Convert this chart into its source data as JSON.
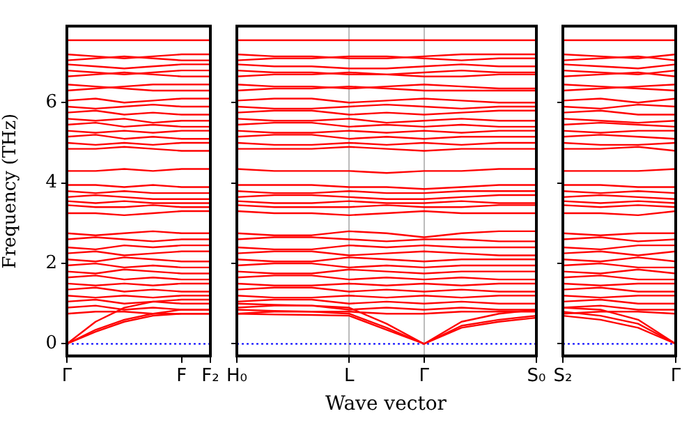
{
  "chart_data": [
    {
      "type": "line",
      "ylabel": "Frequency (THz)",
      "color": "#ff0000",
      "categories": [
        "Γ",
        null,
        null,
        null,
        "F",
        "F₂"
      ],
      "ylim": [
        -0.3,
        7.9
      ],
      "yticks": [
        0,
        2,
        4,
        6
      ],
      "ref_lines": [
        {
          "axis": "y",
          "value": 0,
          "color": "#0000ff",
          "line_style": "dotted"
        }
      ],
      "series": [
        {
          "values": [
            7.55,
            7.55,
            7.55,
            7.55,
            7.55,
            7.55
          ]
        },
        {
          "values": [
            7.2,
            7.15,
            7.1,
            7.15,
            7.2,
            7.2
          ]
        },
        {
          "values": [
            7.05,
            7.1,
            7.15,
            7.1,
            7.05,
            7.05
          ]
        },
        {
          "values": [
            6.95,
            6.9,
            6.85,
            6.9,
            6.95,
            6.95
          ]
        },
        {
          "values": [
            6.8,
            6.75,
            6.7,
            6.75,
            6.8,
            6.8
          ]
        },
        {
          "values": [
            6.65,
            6.7,
            6.75,
            6.7,
            6.65,
            6.65
          ]
        },
        {
          "values": [
            6.45,
            6.4,
            6.35,
            6.3,
            6.3,
            6.3
          ]
        },
        {
          "values": [
            6.3,
            6.35,
            6.4,
            6.45,
            6.45,
            6.45
          ]
        },
        {
          "values": [
            6.05,
            6.1,
            6.0,
            6.05,
            6.1,
            6.1
          ]
        },
        {
          "values": [
            5.9,
            5.85,
            5.9,
            5.95,
            5.9,
            5.9
          ]
        },
        {
          "values": [
            5.75,
            5.8,
            5.7,
            5.75,
            5.7,
            5.7
          ]
        },
        {
          "values": [
            5.6,
            5.55,
            5.6,
            5.5,
            5.55,
            5.55
          ]
        },
        {
          "values": [
            5.45,
            5.5,
            5.4,
            5.45,
            5.4,
            5.4
          ]
        },
        {
          "values": [
            5.3,
            5.25,
            5.3,
            5.25,
            5.3,
            5.3
          ]
        },
        {
          "values": [
            5.15,
            5.2,
            5.1,
            5.15,
            5.1,
            5.1
          ]
        },
        {
          "values": [
            5.0,
            4.95,
            5.0,
            4.95,
            5.0,
            5.0
          ]
        },
        {
          "values": [
            4.85,
            4.85,
            4.9,
            4.85,
            4.8,
            4.8
          ]
        },
        {
          "values": [
            4.3,
            4.3,
            4.35,
            4.3,
            4.35,
            4.35
          ]
        },
        {
          "values": [
            3.95,
            3.95,
            3.9,
            3.95,
            3.9,
            3.9
          ]
        },
        {
          "values": [
            3.8,
            3.75,
            3.8,
            3.75,
            3.75,
            3.75
          ]
        },
        {
          "values": [
            3.65,
            3.7,
            3.65,
            3.6,
            3.6,
            3.6
          ]
        },
        {
          "values": [
            3.55,
            3.5,
            3.55,
            3.5,
            3.5,
            3.5
          ]
        },
        {
          "values": [
            3.45,
            3.4,
            3.4,
            3.45,
            3.4,
            3.4
          ]
        },
        {
          "values": [
            3.25,
            3.25,
            3.2,
            3.25,
            3.3,
            3.3
          ]
        },
        {
          "values": [
            2.75,
            2.7,
            2.75,
            2.8,
            2.75,
            2.75
          ]
        },
        {
          "values": [
            2.6,
            2.65,
            2.6,
            2.55,
            2.6,
            2.6
          ]
        },
        {
          "values": [
            2.4,
            2.35,
            2.45,
            2.4,
            2.45,
            2.45
          ]
        },
        {
          "values": [
            2.25,
            2.3,
            2.2,
            2.25,
            2.3,
            2.3
          ]
        },
        {
          "values": [
            2.1,
            2.05,
            2.15,
            2.1,
            2.05,
            2.05
          ]
        },
        {
          "values": [
            1.95,
            2.0,
            1.9,
            1.95,
            1.9,
            1.9
          ]
        },
        {
          "values": [
            1.8,
            1.75,
            1.85,
            1.8,
            1.75,
            1.75
          ]
        },
        {
          "values": [
            1.65,
            1.7,
            1.6,
            1.65,
            1.6,
            1.6
          ]
        },
        {
          "values": [
            1.5,
            1.45,
            1.5,
            1.45,
            1.5,
            1.5
          ]
        },
        {
          "values": [
            1.35,
            1.4,
            1.3,
            1.35,
            1.3,
            1.3
          ]
        },
        {
          "values": [
            1.2,
            1.15,
            1.2,
            1.15,
            1.2,
            1.2
          ]
        },
        {
          "values": [
            1.05,
            1.1,
            1.0,
            1.05,
            1.0,
            1.0
          ]
        },
        {
          "values": [
            0.9,
            0.95,
            0.85,
            0.9,
            0.85,
            0.85
          ]
        },
        {
          "values": [
            0.75,
            0.8,
            0.8,
            0.75,
            0.75,
            0.75
          ]
        },
        {
          "values": [
            0,
            0.3,
            0.55,
            0.7,
            0.75,
            0.75
          ]
        },
        {
          "values": [
            0,
            0.35,
            0.6,
            0.75,
            0.85,
            0.85
          ]
        },
        {
          "values": [
            0,
            0.55,
            0.9,
            1.05,
            1.1,
            1.1
          ]
        }
      ]
    },
    {
      "type": "line",
      "xlabel": "Wave vector",
      "color": "#ff0000",
      "grid": "x",
      "tick_labels": "x",
      "categories": [
        "H₀",
        null,
        null,
        "L",
        null,
        "Γ",
        null,
        null,
        "S₀"
      ],
      "ylim": [
        -0.3,
        7.9
      ],
      "yticks": [
        0,
        2,
        4,
        6
      ],
      "ref_lines": [
        {
          "axis": "y",
          "value": 0,
          "color": "#0000ff",
          "line_style": "dotted"
        }
      ],
      "series": [
        {
          "values": [
            7.55,
            7.55,
            7.55,
            7.55,
            7.55,
            7.55,
            7.55,
            7.55,
            7.55
          ]
        },
        {
          "values": [
            7.2,
            7.15,
            7.15,
            7.1,
            7.1,
            7.15,
            7.2,
            7.2,
            7.2
          ]
        },
        {
          "values": [
            7.05,
            7.1,
            7.1,
            7.15,
            7.15,
            7.1,
            7.05,
            7.1,
            7.1
          ]
        },
        {
          "values": [
            6.95,
            6.9,
            6.9,
            6.85,
            6.85,
            6.9,
            6.95,
            6.9,
            6.9
          ]
        },
        {
          "values": [
            6.8,
            6.75,
            6.75,
            6.7,
            6.7,
            6.75,
            6.8,
            6.75,
            6.75
          ]
        },
        {
          "values": [
            6.65,
            6.7,
            6.7,
            6.75,
            6.7,
            6.65,
            6.65,
            6.7,
            6.7
          ]
        },
        {
          "values": [
            6.45,
            6.4,
            6.4,
            6.35,
            6.4,
            6.45,
            6.4,
            6.35,
            6.35
          ]
        },
        {
          "values": [
            6.3,
            6.35,
            6.35,
            6.4,
            6.35,
            6.3,
            6.3,
            6.3,
            6.3
          ]
        },
        {
          "values": [
            6.05,
            6.1,
            6.1,
            6.0,
            6.05,
            6.1,
            6.05,
            6.0,
            6.0
          ]
        },
        {
          "values": [
            5.9,
            5.85,
            5.85,
            5.9,
            5.95,
            5.9,
            5.85,
            5.9,
            5.9
          ]
        },
        {
          "values": [
            5.75,
            5.8,
            5.8,
            5.7,
            5.75,
            5.7,
            5.75,
            5.8,
            5.8
          ]
        },
        {
          "values": [
            5.6,
            5.55,
            5.55,
            5.6,
            5.5,
            5.55,
            5.6,
            5.55,
            5.55
          ]
        },
        {
          "values": [
            5.45,
            5.5,
            5.5,
            5.4,
            5.45,
            5.4,
            5.45,
            5.4,
            5.4
          ]
        },
        {
          "values": [
            5.3,
            5.25,
            5.25,
            5.3,
            5.25,
            5.3,
            5.25,
            5.3,
            5.3
          ]
        },
        {
          "values": [
            5.15,
            5.2,
            5.2,
            5.1,
            5.15,
            5.1,
            5.15,
            5.15,
            5.15
          ]
        },
        {
          "values": [
            5.0,
            4.95,
            4.95,
            5.0,
            4.95,
            5.0,
            4.95,
            5.0,
            5.0
          ]
        },
        {
          "values": [
            4.85,
            4.85,
            4.85,
            4.9,
            4.85,
            4.8,
            4.85,
            4.85,
            4.85
          ]
        },
        {
          "values": [
            4.35,
            4.3,
            4.3,
            4.3,
            4.25,
            4.3,
            4.3,
            4.35,
            4.35
          ]
        },
        {
          "values": [
            3.95,
            3.95,
            3.95,
            3.9,
            3.9,
            3.85,
            3.9,
            3.95,
            3.95
          ]
        },
        {
          "values": [
            3.8,
            3.75,
            3.75,
            3.8,
            3.75,
            3.75,
            3.8,
            3.8,
            3.8
          ]
        },
        {
          "values": [
            3.65,
            3.7,
            3.7,
            3.65,
            3.6,
            3.6,
            3.65,
            3.7,
            3.7
          ]
        },
        {
          "values": [
            3.55,
            3.5,
            3.5,
            3.55,
            3.5,
            3.5,
            3.55,
            3.5,
            3.5
          ]
        },
        {
          "values": [
            3.45,
            3.4,
            3.4,
            3.4,
            3.45,
            3.4,
            3.4,
            3.45,
            3.45
          ]
        },
        {
          "values": [
            3.3,
            3.25,
            3.25,
            3.2,
            3.25,
            3.3,
            3.25,
            3.25,
            3.25
          ]
        },
        {
          "values": [
            2.75,
            2.7,
            2.7,
            2.8,
            2.75,
            2.65,
            2.75,
            2.8,
            2.8
          ]
        },
        {
          "values": [
            2.6,
            2.65,
            2.65,
            2.6,
            2.55,
            2.6,
            2.6,
            2.55,
            2.55
          ]
        },
        {
          "values": [
            2.4,
            2.35,
            2.35,
            2.45,
            2.4,
            2.45,
            2.4,
            2.4,
            2.4
          ]
        },
        {
          "values": [
            2.25,
            2.3,
            2.3,
            2.2,
            2.25,
            2.3,
            2.25,
            2.2,
            2.2
          ]
        },
        {
          "values": [
            2.1,
            2.05,
            2.05,
            2.15,
            2.1,
            2.05,
            2.1,
            2.1,
            2.1
          ]
        },
        {
          "values": [
            1.95,
            2.0,
            2.0,
            1.9,
            1.95,
            1.9,
            1.95,
            1.95,
            1.95
          ]
        },
        {
          "values": [
            1.8,
            1.75,
            1.75,
            1.85,
            1.8,
            1.75,
            1.8,
            1.8,
            1.8
          ]
        },
        {
          "values": [
            1.65,
            1.7,
            1.7,
            1.6,
            1.65,
            1.6,
            1.65,
            1.6,
            1.6
          ]
        },
        {
          "values": [
            1.5,
            1.45,
            1.45,
            1.5,
            1.45,
            1.5,
            1.45,
            1.5,
            1.5
          ]
        },
        {
          "values": [
            1.35,
            1.4,
            1.4,
            1.3,
            1.35,
            1.3,
            1.35,
            1.3,
            1.3
          ]
        },
        {
          "values": [
            1.2,
            1.15,
            1.15,
            1.2,
            1.15,
            1.2,
            1.15,
            1.2,
            1.2
          ]
        },
        {
          "values": [
            1.05,
            1.1,
            1.1,
            1.0,
            1.05,
            1.0,
            1.05,
            1.0,
            1.0
          ]
        },
        {
          "values": [
            0.9,
            0.95,
            0.95,
            0.85,
            0.9,
            0.85,
            0.9,
            0.85,
            0.85
          ]
        },
        {
          "values": [
            0.75,
            0.8,
            0.8,
            0.8,
            0.75,
            0.75,
            0.8,
            0.8,
            0.8
          ]
        },
        {
          "values": [
            0.75,
            0.73,
            0.72,
            0.7,
            0.35,
            0,
            0.4,
            0.55,
            0.65
          ]
        },
        {
          "values": [
            0.85,
            0.82,
            0.8,
            0.75,
            0.4,
            0,
            0.45,
            0.6,
            0.7
          ]
        },
        {
          "values": [
            1.0,
            0.97,
            0.95,
            0.9,
            0.5,
            0,
            0.55,
            0.75,
            0.85
          ]
        }
      ]
    },
    {
      "type": "line",
      "color": "#ff0000",
      "tick_labels": "x",
      "categories": [
        "S₂",
        null,
        null,
        "Γ"
      ],
      "ylim": [
        -0.3,
        7.9
      ],
      "yticks": [
        0,
        2,
        4,
        6
      ],
      "ref_lines": [
        {
          "axis": "y",
          "value": 0,
          "color": "#0000ff",
          "line_style": "dotted"
        }
      ],
      "series": [
        {
          "values": [
            7.55,
            7.55,
            7.55,
            7.55
          ]
        },
        {
          "values": [
            7.2,
            7.15,
            7.1,
            7.2
          ]
        },
        {
          "values": [
            7.05,
            7.1,
            7.15,
            7.05
          ]
        },
        {
          "values": [
            6.95,
            6.9,
            6.85,
            6.95
          ]
        },
        {
          "values": [
            6.8,
            6.75,
            6.7,
            6.8
          ]
        },
        {
          "values": [
            6.65,
            6.7,
            6.75,
            6.65
          ]
        },
        {
          "values": [
            6.45,
            6.4,
            6.35,
            6.3
          ]
        },
        {
          "values": [
            6.3,
            6.35,
            6.4,
            6.45
          ]
        },
        {
          "values": [
            6.05,
            6.1,
            6.0,
            6.1
          ]
        },
        {
          "values": [
            5.9,
            5.85,
            5.95,
            5.9
          ]
        },
        {
          "values": [
            5.75,
            5.8,
            5.7,
            5.7
          ]
        },
        {
          "values": [
            5.6,
            5.55,
            5.5,
            5.55
          ]
        },
        {
          "values": [
            5.45,
            5.5,
            5.45,
            5.4
          ]
        },
        {
          "values": [
            5.3,
            5.25,
            5.3,
            5.3
          ]
        },
        {
          "values": [
            5.15,
            5.2,
            5.15,
            5.1
          ]
        },
        {
          "values": [
            5.0,
            4.95,
            4.95,
            5.0
          ]
        },
        {
          "values": [
            4.85,
            4.85,
            4.9,
            4.8
          ]
        },
        {
          "values": [
            4.3,
            4.3,
            4.3,
            4.35
          ]
        },
        {
          "values": [
            3.95,
            3.95,
            3.9,
            3.9
          ]
        },
        {
          "values": [
            3.8,
            3.75,
            3.8,
            3.75
          ]
        },
        {
          "values": [
            3.65,
            3.7,
            3.65,
            3.6
          ]
        },
        {
          "values": [
            3.55,
            3.5,
            3.55,
            3.5
          ]
        },
        {
          "values": [
            3.45,
            3.4,
            3.45,
            3.4
          ]
        },
        {
          "values": [
            3.25,
            3.25,
            3.2,
            3.3
          ]
        },
        {
          "values": [
            2.75,
            2.7,
            2.75,
            2.75
          ]
        },
        {
          "values": [
            2.6,
            2.65,
            2.55,
            2.6
          ]
        },
        {
          "values": [
            2.4,
            2.35,
            2.45,
            2.45
          ]
        },
        {
          "values": [
            2.25,
            2.3,
            2.2,
            2.3
          ]
        },
        {
          "values": [
            2.1,
            2.05,
            2.15,
            2.05
          ]
        },
        {
          "values": [
            1.95,
            2.0,
            1.9,
            1.9
          ]
        },
        {
          "values": [
            1.8,
            1.75,
            1.85,
            1.75
          ]
        },
        {
          "values": [
            1.65,
            1.7,
            1.6,
            1.6
          ]
        },
        {
          "values": [
            1.5,
            1.45,
            1.5,
            1.5
          ]
        },
        {
          "values": [
            1.35,
            1.4,
            1.3,
            1.3
          ]
        },
        {
          "values": [
            1.2,
            1.15,
            1.2,
            1.2
          ]
        },
        {
          "values": [
            1.05,
            1.1,
            1.0,
            1.0
          ]
        },
        {
          "values": [
            0.9,
            0.95,
            0.85,
            0.85
          ]
        },
        {
          "values": [
            0.75,
            0.8,
            0.8,
            0.75
          ]
        },
        {
          "values": [
            0.7,
            0.6,
            0.4,
            0
          ]
        },
        {
          "values": [
            0.8,
            0.7,
            0.5,
            0
          ]
        },
        {
          "values": [
            0.9,
            0.85,
            0.6,
            0
          ]
        }
      ]
    }
  ]
}
